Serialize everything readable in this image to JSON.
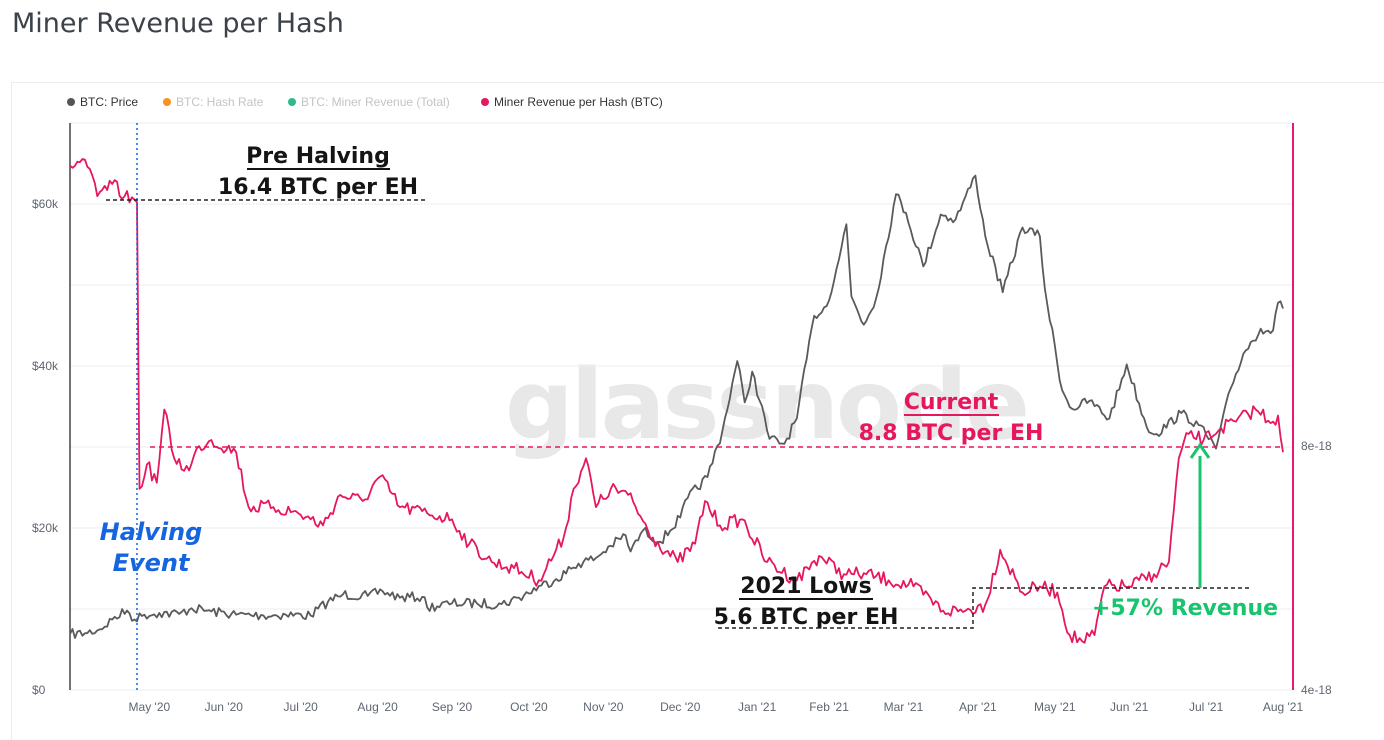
{
  "page_title": "Miner Revenue per Hash",
  "watermark": "glassnode",
  "legend": [
    {
      "label": "BTC: Price",
      "color": "#555555",
      "active": true
    },
    {
      "label": "BTC: Hash Rate",
      "color": "#f7931a",
      "active": false
    },
    {
      "label": "BTC: Miner Revenue (Total)",
      "color": "#30b98a",
      "active": false
    },
    {
      "label": "Miner Revenue per Hash (BTC)",
      "color": "#e6175f",
      "active": true
    }
  ],
  "annotations": {
    "pre_halving_title": "Pre Halving",
    "pre_halving_value": "16.4 BTC per EH",
    "halving_line1": "Halving",
    "halving_line2": "Event",
    "current_title": "Current",
    "current_value": "8.8 BTC per EH",
    "lows_title": "2021 Lows",
    "lows_value": "5.6 BTC per EH",
    "revenue_change": "+57% Revenue"
  },
  "chart_data": {
    "type": "line",
    "title": "Miner Revenue per Hash",
    "x_ticks": [
      "May '20",
      "Jun '20",
      "Jul '20",
      "Aug '20",
      "Sep '20",
      "Oct '20",
      "Nov '20",
      "Dec '20",
      "Jan '21",
      "Feb '21",
      "Mar '21",
      "Apr '21",
      "May '21",
      "Jun '21",
      "Jul '21",
      "Aug '21"
    ],
    "x_range": [
      "2020-04-14",
      "2021-08-16"
    ],
    "y_left": {
      "ticks": [
        "$0",
        "$20k",
        "$40k",
        "$60k"
      ],
      "tick_values": [
        0,
        20000,
        40000,
        60000
      ],
      "range": [
        0,
        70000
      ]
    },
    "y_right": {
      "ticks": [
        "4e-18",
        "8e-18"
      ],
      "tick_values": [
        4e-18,
        8e-18
      ],
      "range": [
        4e-18,
        1.33e-17
      ]
    },
    "grid": true,
    "legend_position": "top-left",
    "halving_date": "2020-05-11",
    "colors": {
      "price": "#5a5a5a",
      "revenue": "#e6175f",
      "halving": "#1565e0",
      "green": "#18c46e",
      "right_axis": "#e6177e"
    },
    "series": [
      {
        "name": "BTC: Price",
        "axis": "left",
        "points": [
          [
            "2020-04-14",
            6900
          ],
          [
            "2020-04-20",
            7000
          ],
          [
            "2020-04-26",
            7500
          ],
          [
            "2020-05-01",
            8700
          ],
          [
            "2020-05-07",
            9800
          ],
          [
            "2020-05-10",
            8700
          ],
          [
            "2020-05-14",
            9300
          ],
          [
            "2020-05-20",
            9500
          ],
          [
            "2020-05-28",
            9400
          ],
          [
            "2020-06-02",
            10100
          ],
          [
            "2020-06-10",
            9700
          ],
          [
            "2020-06-20",
            9300
          ],
          [
            "2020-07-01",
            9200
          ],
          [
            "2020-07-10",
            9300
          ],
          [
            "2020-07-20",
            9200
          ],
          [
            "2020-07-27",
            10900
          ],
          [
            "2020-08-02",
            11800
          ],
          [
            "2020-08-12",
            11600
          ],
          [
            "2020-08-18",
            12200
          ],
          [
            "2020-08-25",
            11400
          ],
          [
            "2020-09-03",
            11500
          ],
          [
            "2020-09-05",
            10200
          ],
          [
            "2020-09-15",
            10700
          ],
          [
            "2020-09-25",
            10700
          ],
          [
            "2020-10-05",
            10600
          ],
          [
            "2020-10-12",
            11400
          ],
          [
            "2020-10-21",
            12900
          ],
          [
            "2020-10-27",
            13700
          ],
          [
            "2020-11-05",
            15600
          ],
          [
            "2020-11-12",
            16300
          ],
          [
            "2020-11-18",
            17800
          ],
          [
            "2020-11-24",
            19100
          ],
          [
            "2020-11-26",
            17100
          ],
          [
            "2020-12-01",
            19700
          ],
          [
            "2020-12-08",
            18300
          ],
          [
            "2020-12-16",
            21300
          ],
          [
            "2020-12-19",
            23700
          ],
          [
            "2020-12-27",
            26300
          ],
          [
            "2021-01-02",
            32000
          ],
          [
            "2021-01-08",
            40600
          ],
          [
            "2021-01-11",
            35500
          ],
          [
            "2021-01-14",
            39300
          ],
          [
            "2021-01-21",
            31000
          ],
          [
            "2021-01-27",
            30400
          ],
          [
            "2021-02-01",
            33500
          ],
          [
            "2021-02-08",
            46200
          ],
          [
            "2021-02-13",
            47400
          ],
          [
            "2021-02-17",
            52000
          ],
          [
            "2021-02-21",
            57500
          ],
          [
            "2021-02-23",
            48600
          ],
          [
            "2021-02-28",
            45100
          ],
          [
            "2021-03-05",
            48400
          ],
          [
            "2021-03-13",
            61200
          ],
          [
            "2021-03-17",
            58900
          ],
          [
            "2021-03-24",
            52300
          ],
          [
            "2021-03-31",
            58700
          ],
          [
            "2021-04-06",
            58100
          ],
          [
            "2021-04-14",
            63500
          ],
          [
            "2021-04-18",
            56000
          ],
          [
            "2021-04-25",
            49100
          ],
          [
            "2021-05-03",
            57100
          ],
          [
            "2021-05-10",
            56000
          ],
          [
            "2021-05-12",
            49500
          ],
          [
            "2021-05-19",
            37000
          ],
          [
            "2021-05-23",
            34700
          ],
          [
            "2021-05-30",
            35700
          ],
          [
            "2021-06-07",
            33500
          ],
          [
            "2021-06-14",
            40200
          ],
          [
            "2021-06-22",
            32500
          ],
          [
            "2021-06-26",
            31600
          ],
          [
            "2021-07-06",
            34200
          ],
          [
            "2021-07-13",
            32700
          ],
          [
            "2021-07-20",
            29800
          ],
          [
            "2021-07-26",
            37300
          ],
          [
            "2021-07-31",
            41500
          ],
          [
            "2021-08-07",
            44600
          ],
          [
            "2021-08-12",
            44400
          ],
          [
            "2021-08-14",
            47800
          ],
          [
            "2021-08-16",
            47100
          ]
        ]
      },
      {
        "name": "Miner Revenue per Hash (BTC)",
        "axis": "right",
        "points": [
          [
            "2020-04-14",
            1.26e-17
          ],
          [
            "2020-04-20",
            1.27e-17
          ],
          [
            "2020-04-25",
            1.21e-17
          ],
          [
            "2020-05-01",
            1.23e-17
          ],
          [
            "2020-05-06",
            1.21e-17
          ],
          [
            "2020-05-11",
            1.2e-17
          ],
          [
            "2020-05-12",
            7.3e-18
          ],
          [
            "2020-05-15",
            7.7e-18
          ],
          [
            "2020-05-19",
            7.4e-18
          ],
          [
            "2020-05-22",
            8.6e-18
          ],
          [
            "2020-05-26",
            7.8e-18
          ],
          [
            "2020-06-01",
            7.6e-18
          ],
          [
            "2020-06-05",
            8e-18
          ],
          [
            "2020-06-10",
            8.1e-18
          ],
          [
            "2020-06-20",
            7.9e-18
          ],
          [
            "2020-06-25",
            7e-18
          ],
          [
            "2020-07-05",
            7e-18
          ],
          [
            "2020-07-15",
            6.9e-18
          ],
          [
            "2020-07-25",
            6.7e-18
          ],
          [
            "2020-08-01",
            7.2e-18
          ],
          [
            "2020-08-10",
            7.1e-18
          ],
          [
            "2020-08-17",
            7.5e-18
          ],
          [
            "2020-08-25",
            7e-18
          ],
          [
            "2020-09-05",
            6.9e-18
          ],
          [
            "2020-09-15",
            6.8e-18
          ],
          [
            "2020-09-22",
            6.4e-18
          ],
          [
            "2020-10-01",
            6.1e-18
          ],
          [
            "2020-10-10",
            6e-18
          ],
          [
            "2020-10-20",
            5.8e-18
          ],
          [
            "2020-10-30",
            6.5e-18
          ],
          [
            "2020-11-03",
            7.3e-18
          ],
          [
            "2020-11-08",
            7.8e-18
          ],
          [
            "2020-11-12",
            7e-18
          ],
          [
            "2020-11-18",
            7.3e-18
          ],
          [
            "2020-11-25",
            7.2e-18
          ],
          [
            "2020-12-05",
            6.5e-18
          ],
          [
            "2020-12-15",
            6.1e-18
          ],
          [
            "2020-12-22",
            6.4e-18
          ],
          [
            "2020-12-26",
            7.1e-18
          ],
          [
            "2021-01-01",
            6.7e-18
          ],
          [
            "2021-01-10",
            6.8e-18
          ],
          [
            "2021-01-20",
            6.1e-18
          ],
          [
            "2021-02-01",
            5.8e-18
          ],
          [
            "2021-02-10",
            6.2e-18
          ],
          [
            "2021-02-20",
            5.9e-18
          ],
          [
            "2021-03-01",
            5.9e-18
          ],
          [
            "2021-03-10",
            5.8e-18
          ],
          [
            "2021-03-20",
            5.7e-18
          ],
          [
            "2021-04-01",
            5.3e-18
          ],
          [
            "2021-04-10",
            5.3e-18
          ],
          [
            "2021-04-18",
            5.4e-18
          ],
          [
            "2021-04-24",
            6.3e-18
          ],
          [
            "2021-05-03",
            5.6e-18
          ],
          [
            "2021-05-10",
            5.7e-18
          ],
          [
            "2021-05-17",
            5.6e-18
          ],
          [
            "2021-05-22",
            4.9e-18
          ],
          [
            "2021-05-27",
            4.8e-18
          ],
          [
            "2021-06-01",
            4.9e-18
          ],
          [
            "2021-06-05",
            5.7e-18
          ],
          [
            "2021-06-15",
            5.7e-18
          ],
          [
            "2021-06-25",
            5.9e-18
          ],
          [
            "2021-07-01",
            6.1e-18
          ],
          [
            "2021-07-05",
            7.8e-18
          ],
          [
            "2021-07-09",
            8.2e-18
          ],
          [
            "2021-07-15",
            8.1e-18
          ],
          [
            "2021-07-22",
            8.3e-18
          ],
          [
            "2021-07-28",
            8.4e-18
          ],
          [
            "2021-08-05",
            8.6e-18
          ],
          [
            "2021-08-12",
            8.4e-18
          ],
          [
            "2021-08-14",
            8.5e-18
          ],
          [
            "2021-08-16",
            7.9e-18
          ]
        ]
      }
    ]
  }
}
